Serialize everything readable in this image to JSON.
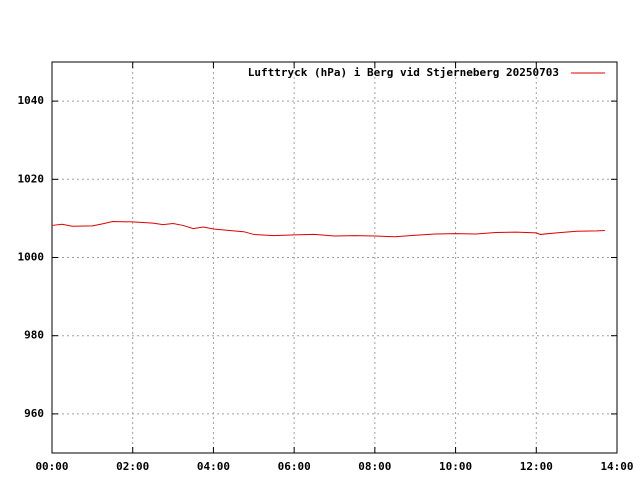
{
  "chart_data": {
    "type": "line",
    "x": [
      0,
      0.25,
      0.5,
      1.0,
      1.25,
      1.5,
      2.0,
      2.5,
      2.75,
      3.0,
      3.25,
      3.5,
      3.75,
      4.0,
      4.5,
      4.75,
      5.0,
      5.5,
      6.0,
      6.5,
      7.0,
      7.5,
      8.0,
      8.5,
      9.0,
      9.5,
      10.0,
      10.5,
      11.0,
      11.5,
      12.0,
      12.1,
      12.5,
      13.0,
      13.5,
      13.7
    ],
    "series": [
      {
        "name": "Lufttryck (hPa) i Berg vid Stjerneberg 20250703",
        "color": "#e00000",
        "values": [
          1008.2,
          1008.5,
          1008.0,
          1008.1,
          1008.6,
          1009.2,
          1009.1,
          1008.8,
          1008.4,
          1008.7,
          1008.2,
          1007.4,
          1007.8,
          1007.3,
          1006.8,
          1006.6,
          1005.9,
          1005.6,
          1005.8,
          1005.9,
          1005.5,
          1005.6,
          1005.5,
          1005.3,
          1005.7,
          1006.0,
          1006.1,
          1006.0,
          1006.4,
          1006.5,
          1006.3,
          1005.9,
          1006.3,
          1006.7,
          1006.8,
          1006.9
        ]
      }
    ],
    "xlim": [
      0,
      14
    ],
    "xticks": [
      {
        "value": 0,
        "label": "00:00"
      },
      {
        "value": 2,
        "label": "02:00"
      },
      {
        "value": 4,
        "label": "04:00"
      },
      {
        "value": 6,
        "label": "06:00"
      },
      {
        "value": 8,
        "label": "08:00"
      },
      {
        "value": 10,
        "label": "10:00"
      },
      {
        "value": 12,
        "label": "12:00"
      },
      {
        "value": 14,
        "label": "14:00"
      }
    ],
    "ylim": [
      950,
      1050
    ],
    "yticks": [
      960,
      980,
      1000,
      1020,
      1040
    ],
    "grid": true,
    "legend": "top-right"
  }
}
